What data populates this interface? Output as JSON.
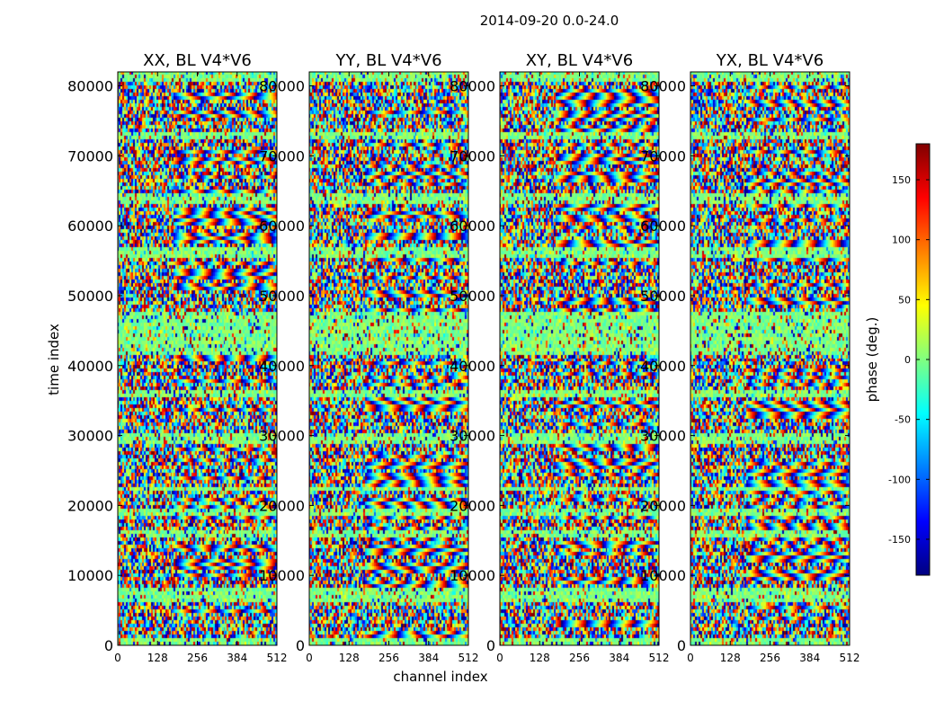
{
  "chart_data": {
    "type": "heatmap",
    "suptitle": "2014-09-20 0.0-24.0",
    "xlabel": "channel index",
    "ylabel": "time index",
    "xlim": [
      0,
      512
    ],
    "ylim": [
      0,
      82000
    ],
    "xticks": [
      0,
      128,
      256,
      384,
      512
    ],
    "yticks": [
      0,
      10000,
      20000,
      30000,
      40000,
      50000,
      60000,
      70000,
      80000
    ],
    "panels": [
      {
        "title": "XX, BL V4*V6"
      },
      {
        "title": "YY, BL V4*V6"
      },
      {
        "title": "XY, BL V4*V6"
      },
      {
        "title": "YX, BL V4*V6"
      }
    ],
    "colorbar": {
      "label": "phase (deg.)",
      "range": [
        -180,
        180
      ],
      "ticks": [
        150,
        100,
        50,
        0,
        -50,
        -100,
        -150
      ],
      "colormap": [
        "#000080",
        "#0000ff",
        "#0080ff",
        "#00ffff",
        "#80ff80",
        "#ffff00",
        "#ff8000",
        "#ff0000",
        "#800000"
      ]
    },
    "noisy_bands": [
      [
        0,
        1200
      ],
      [
        6000,
        8000
      ],
      [
        15500,
        16500
      ],
      [
        18500,
        19500
      ],
      [
        22000,
        22800
      ],
      [
        28500,
        30200
      ],
      [
        35500,
        36500
      ],
      [
        41500,
        47500
      ],
      [
        55500,
        57000
      ],
      [
        63000,
        64500
      ],
      [
        72500,
        73500
      ],
      [
        80500,
        82000
      ]
    ]
  }
}
